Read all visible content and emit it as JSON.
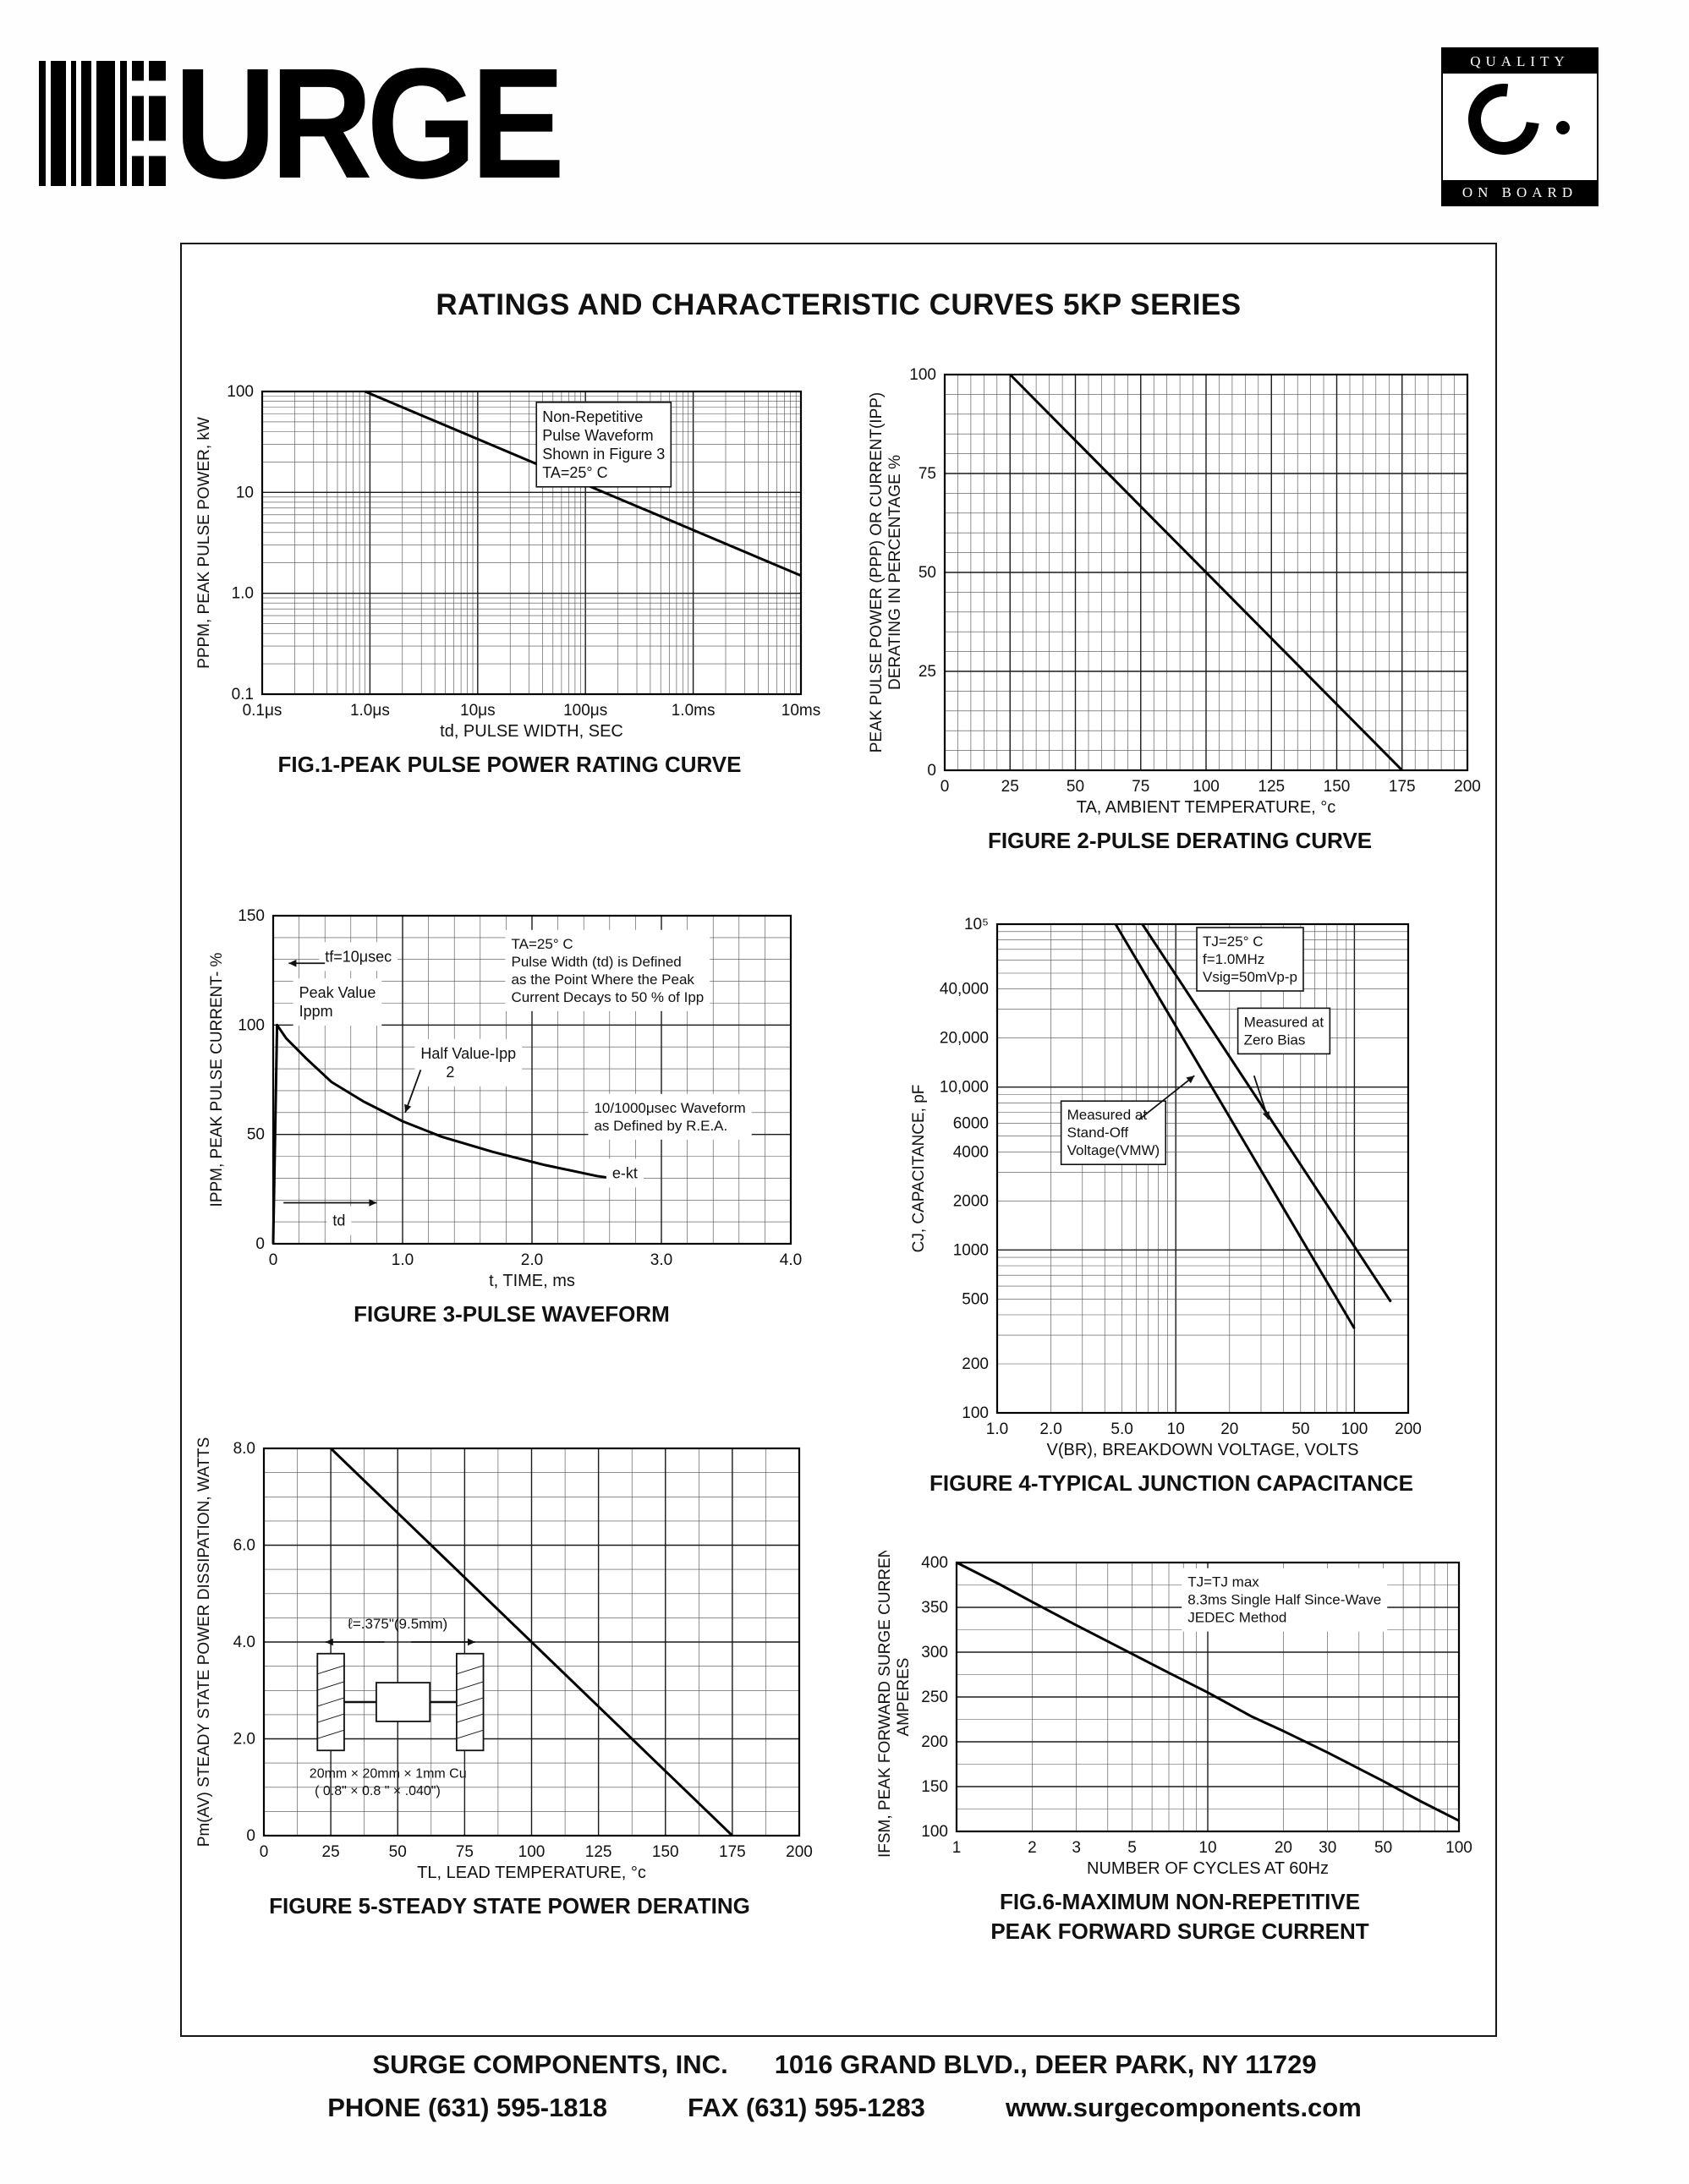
{
  "page": {
    "logo_text": "URGE",
    "quality_badge": {
      "top": "QUALITY",
      "bottom": "ON BOARD"
    },
    "title": "RATINGS AND CHARACTERISTIC CURVES 5KP SERIES",
    "footer": {
      "company": "SURGE COMPONENTS, INC.",
      "address": "1016 GRAND BLVD., DEER PARK, NY  11729",
      "phone": "PHONE (631) 595-1818",
      "fax": "FAX (631) 595-1283",
      "website": "www.surgecomponents.com"
    }
  },
  "chart_data": [
    {
      "id": "fig1",
      "type": "line",
      "title": "FIG.1-PEAK PULSE POWER RATING CURVE",
      "xlabel": "td, PULSE WIDTH, SEC",
      "ylabel": "PPPM, PEAK PULSE POWER, kW",
      "x_scale": "log",
      "y_scale": "log",
      "x_range": [
        1e-07,
        0.01
      ],
      "y_range": [
        0.1,
        100
      ],
      "x_ticks": [
        {
          "v": 1e-07,
          "label": "0.1μs"
        },
        {
          "v": 1e-06,
          "label": "1.0μs"
        },
        {
          "v": 1e-05,
          "label": "10μs"
        },
        {
          "v": 0.0001,
          "label": "100μs"
        },
        {
          "v": 0.001,
          "label": "1.0ms"
        },
        {
          "v": 0.01,
          "label": "10ms"
        }
      ],
      "y_ticks": [
        {
          "v": 100,
          "label": "100"
        },
        {
          "v": 10,
          "label": "10"
        },
        {
          "v": 1,
          "label": "1.0"
        },
        {
          "v": 0.1,
          "label": "0.1"
        }
      ],
      "series": [
        {
          "name": "peak-pulse-power-curve",
          "points": [
            [
              9e-07,
              100
            ],
            [
              0.01,
              1.5
            ]
          ]
        }
      ],
      "annotations": [
        {
          "lines": [
            "Non-Repetitive",
            "Pulse Waveform",
            "Shown in Figure 3",
            "TA=25° C"
          ],
          "fx": 0.52,
          "fy": 0.1,
          "boxed": true
        }
      ]
    },
    {
      "id": "fig2",
      "type": "line",
      "title": "FIGURE 2-PULSE DERATING CURVE",
      "xlabel": "TA, AMBIENT  TEMPERATURE, °c",
      "ylabel": [
        "PEAK PULSE POWER (PPP) OR CURRENT(IPP)",
        "DERATING IN PERCENTAGE %"
      ],
      "x_scale": "linear",
      "y_scale": "linear",
      "x_range": [
        0,
        200
      ],
      "y_range": [
        0,
        100
      ],
      "x_minor": 5,
      "y_minor": 5,
      "x_ticks": [
        {
          "v": 0,
          "label": "0"
        },
        {
          "v": 25,
          "label": "25"
        },
        {
          "v": 50,
          "label": "50"
        },
        {
          "v": 75,
          "label": "75"
        },
        {
          "v": 100,
          "label": "100"
        },
        {
          "v": 125,
          "label": "125"
        },
        {
          "v": 150,
          "label": "150"
        },
        {
          "v": 175,
          "label": "175"
        },
        {
          "v": 200,
          "label": "200"
        }
      ],
      "y_ticks": [
        {
          "v": 0,
          "label": "0"
        },
        {
          "v": 25,
          "label": "25"
        },
        {
          "v": 50,
          "label": "50"
        },
        {
          "v": 75,
          "label": "75"
        },
        {
          "v": 100,
          "label": "100"
        }
      ],
      "series": [
        {
          "name": "pulse-derating-line",
          "points": [
            [
              25,
              100
            ],
            [
              175,
              0
            ]
          ]
        }
      ]
    },
    {
      "id": "fig3",
      "type": "line",
      "title": "FIGURE 3-PULSE WAVEFORM",
      "xlabel": "t, TIME, ms",
      "ylabel": "IPPM, PEAK PULSE CURRENT- %",
      "x_scale": "linear",
      "y_scale": "linear",
      "x_range": [
        0,
        4
      ],
      "y_range": [
        0,
        150
      ],
      "x_minor": 0.2,
      "y_minor": 10,
      "x_ticks": [
        {
          "v": 0,
          "label": "0"
        },
        {
          "v": 1,
          "label": "1.0"
        },
        {
          "v": 2,
          "label": "2.0"
        },
        {
          "v": 3,
          "label": "3.0"
        },
        {
          "v": 4,
          "label": "4.0"
        }
      ],
      "y_ticks": [
        {
          "v": 0,
          "label": "0"
        },
        {
          "v": 50,
          "label": "50"
        },
        {
          "v": 100,
          "label": "100"
        },
        {
          "v": 150,
          "label": "150"
        }
      ],
      "series": [
        {
          "name": "pulse-waveform-curve",
          "points": [
            [
              0,
              0
            ],
            [
              0.03,
              100
            ],
            [
              0.1,
              94
            ],
            [
              0.25,
              85
            ],
            [
              0.45,
              74
            ],
            [
              0.7,
              65
            ],
            [
              1.0,
              56
            ],
            [
              1.3,
              49
            ],
            [
              1.7,
              42
            ],
            [
              2.1,
              36
            ],
            [
              2.5,
              31
            ],
            [
              2.85,
              28
            ]
          ]
        }
      ],
      "annotations": [
        {
          "lines": [
            "tf=10μsec"
          ],
          "fx": 0.1,
          "fy": 0.14
        },
        {
          "lines": [
            "Peak Value",
            "Ippm"
          ],
          "fx": 0.05,
          "fy": 0.25
        },
        {
          "lines": [
            "Half Value-Ipp",
            "      2"
          ],
          "fx": 0.285,
          "fy": 0.435
        },
        {
          "lines": [
            "TA=25° C",
            "Pulse Width (td) is Defined",
            "as the Point Where the Peak",
            "Current Decays to 50 % of Ipp"
          ],
          "fx": 0.46,
          "fy": 0.1,
          "fs": 17
        },
        {
          "lines": [
            "10/1000μsec Waveform",
            "as Defined by R.E.A."
          ],
          "fx": 0.62,
          "fy": 0.6,
          "fs": 17
        },
        {
          "lines": [
            "e-kt"
          ],
          "fx": 0.655,
          "fy": 0.8
        },
        {
          "lines": [
            "td"
          ],
          "fx": 0.115,
          "fy": 0.945
        }
      ],
      "arrows": [
        {
          "a": [
            0.285,
            0.47
          ],
          "b": [
            0.255,
            0.6
          ]
        },
        {
          "a": [
            0.1,
            0.145
          ],
          "b": [
            0.03,
            0.145
          ]
        },
        {
          "a": [
            0.02,
            0.875
          ],
          "b": [
            0.2,
            0.875
          ]
        }
      ]
    },
    {
      "id": "fig4",
      "type": "line",
      "title": "FIGURE 4-TYPICAL JUNCTION CAPACITANCE",
      "xlabel": "V(BR), BREAKDOWN VOLTAGE, VOLTS",
      "ylabel": "CJ, CAPACITANCE, pF",
      "x_scale": "log",
      "y_scale": "log",
      "x_range": [
        1,
        200
      ],
      "y_range": [
        100,
        100000
      ],
      "x_ticks": [
        {
          "v": 1,
          "label": "1.0"
        },
        {
          "v": 2,
          "label": "2.0"
        },
        {
          "v": 5,
          "label": "5.0"
        },
        {
          "v": 10,
          "label": "10"
        },
        {
          "v": 20,
          "label": "20"
        },
        {
          "v": 50,
          "label": "50"
        },
        {
          "v": 100,
          "label": "100"
        },
        {
          "v": 200,
          "label": "200"
        }
      ],
      "y_ticks": [
        {
          "v": 100000,
          "label": "10⁵"
        },
        {
          "v": 40000,
          "label": "40,000"
        },
        {
          "v": 20000,
          "label": "20,000"
        },
        {
          "v": 10000,
          "label": "10,000"
        },
        {
          "v": 6000,
          "label": "6000"
        },
        {
          "v": 4000,
          "label": "4000"
        },
        {
          "v": 2000,
          "label": "2000"
        },
        {
          "v": 1000,
          "label": "1000"
        },
        {
          "v": 500,
          "label": "500"
        },
        {
          "v": 200,
          "label": "200"
        },
        {
          "v": 100,
          "label": "100"
        }
      ],
      "series": [
        {
          "name": "measured-at-zero-bias-curve",
          "points": [
            [
              6.5,
              100000
            ],
            [
              160,
              480
            ]
          ]
        },
        {
          "name": "measured-at-standoff-curve",
          "points": [
            [
              4.6,
              100000
            ],
            [
              100,
              330
            ]
          ]
        }
      ],
      "annotations": [
        {
          "lines": [
            "TJ=25° C",
            "f=1.0MHz",
            "Vsig=50mVp-p"
          ],
          "fx": 0.5,
          "fy": 0.045,
          "boxed": true,
          "fs": 17
        },
        {
          "lines": [
            "Measured at",
            "Zero Bias"
          ],
          "fx": 0.6,
          "fy": 0.21,
          "boxed": true,
          "fs": 17
        },
        {
          "lines": [
            "Measured at",
            "Stand-Off",
            "Voltage(VMW)"
          ],
          "fx": 0.17,
          "fy": 0.4,
          "boxed": true,
          "fs": 17
        }
      ],
      "arrows": [
        {
          "a": [
            0.625,
            0.31
          ],
          "b": [
            0.66,
            0.4
          ]
        },
        {
          "a": [
            0.345,
            0.4
          ],
          "b": [
            0.48,
            0.31
          ]
        }
      ]
    },
    {
      "id": "fig5",
      "type": "line",
      "title": "FIGURE 5-STEADY STATE POWER DERATING",
      "xlabel": "TL, LEAD TEMPERATURE, °c",
      "ylabel": "Pm(AV) STEADY STATE POWER DISSIPATION, WATTS",
      "x_scale": "linear",
      "y_scale": "linear",
      "x_range": [
        0,
        200
      ],
      "y_range": [
        0,
        8
      ],
      "x_minor": 12.5,
      "y_minor": 0.5,
      "x_ticks": [
        {
          "v": 0,
          "label": "0"
        },
        {
          "v": 25,
          "label": "25"
        },
        {
          "v": 50,
          "label": "50"
        },
        {
          "v": 75,
          "label": "75"
        },
        {
          "v": 100,
          "label": "100"
        },
        {
          "v": 125,
          "label": "125"
        },
        {
          "v": 150,
          "label": "150"
        },
        {
          "v": 175,
          "label": "175"
        },
        {
          "v": 200,
          "label": "200"
        }
      ],
      "y_ticks": [
        {
          "v": 0,
          "label": "0"
        },
        {
          "v": 2,
          "label": "2.0"
        },
        {
          "v": 4,
          "label": "4.0"
        },
        {
          "v": 6,
          "label": "6.0"
        },
        {
          "v": 8,
          "label": "8.0"
        }
      ],
      "series": [
        {
          "name": "steady-state-derating-line",
          "points": [
            [
              25,
              8
            ],
            [
              175,
              0
            ]
          ]
        }
      ],
      "inset": {
        "length_label": "ℓ=.375\"(9.5mm)",
        "material_line1": "20mm × 20mm × 1mm Cu",
        "material_line2": "( 0.8\" ×  0.8 \" × .040\")"
      }
    },
    {
      "id": "fig6",
      "type": "line",
      "title": "FIG.6-MAXIMUM NON-REPETITIVE",
      "title2": "PEAK FORWARD SURGE CURRENT",
      "xlabel": "NUMBER OF CYCLES AT 60Hz",
      "ylabel": [
        "IFSM, PEAK FORWARD SURGE CURRENT",
        "AMPERES"
      ],
      "x_scale": "log",
      "y_scale": "linear",
      "x_range": [
        1,
        100
      ],
      "y_range": [
        100,
        400
      ],
      "y_minor": 25,
      "x_ticks": [
        {
          "v": 1,
          "label": "1"
        },
        {
          "v": 2,
          "label": "2"
        },
        {
          "v": 3,
          "label": "3"
        },
        {
          "v": 5,
          "label": "5"
        },
        {
          "v": 10,
          "label": "10"
        },
        {
          "v": 20,
          "label": "20"
        },
        {
          "v": 30,
          "label": "30"
        },
        {
          "v": 50,
          "label": "50"
        },
        {
          "v": 100,
          "label": "100"
        }
      ],
      "y_ticks": [
        {
          "v": 100,
          "label": "100"
        },
        {
          "v": 150,
          "label": "150"
        },
        {
          "v": 200,
          "label": "200"
        },
        {
          "v": 250,
          "label": "250"
        },
        {
          "v": 300,
          "label": "300"
        },
        {
          "v": 350,
          "label": "350"
        },
        {
          "v": 400,
          "label": "400"
        }
      ],
      "series": [
        {
          "name": "surge-current-curve",
          "points": [
            [
              1,
              400
            ],
            [
              1.5,
              375
            ],
            [
              2,
              356
            ],
            [
              3,
              330
            ],
            [
              5,
              298
            ],
            [
              7,
              277
            ],
            [
              10,
              255
            ],
            [
              15,
              228
            ],
            [
              20,
              212
            ],
            [
              30,
              188
            ],
            [
              50,
              156
            ],
            [
              70,
              134
            ],
            [
              100,
              112
            ]
          ]
        }
      ],
      "annotations": [
        {
          "lines": [
            "TJ=TJ max",
            "8.3ms Single Half Since-Wave",
            "JEDEC Method"
          ],
          "fx": 0.46,
          "fy": 0.09,
          "fs": 17
        }
      ]
    }
  ]
}
